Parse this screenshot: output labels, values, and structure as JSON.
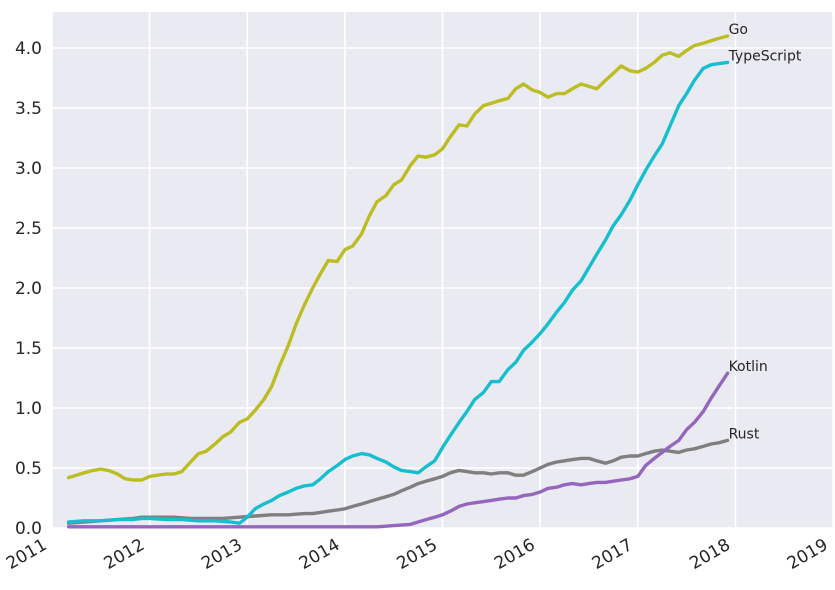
{
  "chart_data": {
    "type": "line",
    "title": "",
    "xlabel": "",
    "ylabel": "",
    "xlim": [
      2011.0,
      2019.0
    ],
    "ylim": [
      0.0,
      4.3
    ],
    "grid": true,
    "legend": "labels at line ends",
    "x_ticks": [
      "2011",
      "2012",
      "2013",
      "2014",
      "2015",
      "2016",
      "2017",
      "2018",
      "2019"
    ],
    "y_ticks": [
      "0.0",
      "0.5",
      "1.0",
      "1.5",
      "2.0",
      "2.5",
      "3.0",
      "3.5",
      "4.0"
    ],
    "series": [
      {
        "name": "Go",
        "color": "#bcbd22",
        "points": [
          [
            2011.17,
            0.42
          ],
          [
            2011.33,
            0.46
          ],
          [
            2011.42,
            0.48
          ],
          [
            2011.5,
            0.49
          ],
          [
            2011.58,
            0.48
          ],
          [
            2011.67,
            0.45
          ],
          [
            2011.75,
            0.41
          ],
          [
            2011.83,
            0.4
          ],
          [
            2011.92,
            0.4
          ],
          [
            2012.0,
            0.43
          ],
          [
            2012.08,
            0.44
          ],
          [
            2012.17,
            0.45
          ],
          [
            2012.25,
            0.45
          ],
          [
            2012.33,
            0.47
          ],
          [
            2012.42,
            0.55
          ],
          [
            2012.5,
            0.62
          ],
          [
            2012.58,
            0.64
          ],
          [
            2012.67,
            0.7
          ],
          [
            2012.75,
            0.76
          ],
          [
            2012.83,
            0.8
          ],
          [
            2012.92,
            0.88
          ],
          [
            2013.0,
            0.91
          ],
          [
            2013.08,
            0.98
          ],
          [
            2013.17,
            1.07
          ],
          [
            2013.25,
            1.18
          ],
          [
            2013.33,
            1.35
          ],
          [
            2013.42,
            1.52
          ],
          [
            2013.5,
            1.7
          ],
          [
            2013.58,
            1.85
          ],
          [
            2013.67,
            2.0
          ],
          [
            2013.75,
            2.12
          ],
          [
            2013.83,
            2.23
          ],
          [
            2013.92,
            2.22
          ],
          [
            2014.0,
            2.32
          ],
          [
            2014.08,
            2.35
          ],
          [
            2014.17,
            2.45
          ],
          [
            2014.25,
            2.6
          ],
          [
            2014.33,
            2.72
          ],
          [
            2014.42,
            2.77
          ],
          [
            2014.5,
            2.86
          ],
          [
            2014.58,
            2.9
          ],
          [
            2014.67,
            3.02
          ],
          [
            2014.75,
            3.1
          ],
          [
            2014.83,
            3.09
          ],
          [
            2014.92,
            3.11
          ],
          [
            2015.0,
            3.16
          ],
          [
            2015.08,
            3.26
          ],
          [
            2015.17,
            3.36
          ],
          [
            2015.25,
            3.35
          ],
          [
            2015.33,
            3.45
          ],
          [
            2015.42,
            3.52
          ],
          [
            2015.5,
            3.54
          ],
          [
            2015.58,
            3.56
          ],
          [
            2015.67,
            3.58
          ],
          [
            2015.75,
            3.66
          ],
          [
            2015.83,
            3.7
          ],
          [
            2015.92,
            3.65
          ],
          [
            2016.0,
            3.63
          ],
          [
            2016.08,
            3.59
          ],
          [
            2016.17,
            3.62
          ],
          [
            2016.25,
            3.62
          ],
          [
            2016.33,
            3.66
          ],
          [
            2016.42,
            3.7
          ],
          [
            2016.5,
            3.68
          ],
          [
            2016.58,
            3.66
          ],
          [
            2016.67,
            3.73
          ],
          [
            2016.75,
            3.79
          ],
          [
            2016.83,
            3.85
          ],
          [
            2016.92,
            3.81
          ],
          [
            2017.0,
            3.8
          ],
          [
            2017.08,
            3.83
          ],
          [
            2017.17,
            3.88
          ],
          [
            2017.25,
            3.94
          ],
          [
            2017.33,
            3.96
          ],
          [
            2017.42,
            3.93
          ],
          [
            2017.5,
            3.98
          ],
          [
            2017.58,
            4.02
          ],
          [
            2017.67,
            4.04
          ],
          [
            2017.75,
            4.06
          ],
          [
            2017.83,
            4.08
          ],
          [
            2017.92,
            4.1
          ]
        ]
      },
      {
        "name": "TypeScript",
        "color": "#17becf",
        "points": [
          [
            2011.17,
            0.05
          ],
          [
            2011.33,
            0.06
          ],
          [
            2011.5,
            0.06
          ],
          [
            2011.67,
            0.07
          ],
          [
            2011.83,
            0.07
          ],
          [
            2011.92,
            0.08
          ],
          [
            2012.0,
            0.08
          ],
          [
            2012.17,
            0.07
          ],
          [
            2012.33,
            0.07
          ],
          [
            2012.5,
            0.06
          ],
          [
            2012.67,
            0.06
          ],
          [
            2012.83,
            0.05
          ],
          [
            2012.92,
            0.04
          ],
          [
            2013.0,
            0.09
          ],
          [
            2013.08,
            0.16
          ],
          [
            2013.17,
            0.2
          ],
          [
            2013.25,
            0.23
          ],
          [
            2013.33,
            0.27
          ],
          [
            2013.42,
            0.3
          ],
          [
            2013.5,
            0.33
          ],
          [
            2013.58,
            0.35
          ],
          [
            2013.67,
            0.36
          ],
          [
            2013.75,
            0.41
          ],
          [
            2013.83,
            0.47
          ],
          [
            2013.92,
            0.52
          ],
          [
            2014.0,
            0.57
          ],
          [
            2014.08,
            0.6
          ],
          [
            2014.17,
            0.62
          ],
          [
            2014.25,
            0.61
          ],
          [
            2014.33,
            0.58
          ],
          [
            2014.42,
            0.55
          ],
          [
            2014.5,
            0.51
          ],
          [
            2014.58,
            0.48
          ],
          [
            2014.67,
            0.47
          ],
          [
            2014.75,
            0.46
          ],
          [
            2014.83,
            0.51
          ],
          [
            2014.92,
            0.56
          ],
          [
            2015.0,
            0.67
          ],
          [
            2015.08,
            0.77
          ],
          [
            2015.17,
            0.88
          ],
          [
            2015.25,
            0.97
          ],
          [
            2015.33,
            1.07
          ],
          [
            2015.42,
            1.13
          ],
          [
            2015.5,
            1.22
          ],
          [
            2015.58,
            1.22
          ],
          [
            2015.67,
            1.32
          ],
          [
            2015.75,
            1.38
          ],
          [
            2015.83,
            1.48
          ],
          [
            2015.92,
            1.55
          ],
          [
            2016.0,
            1.62
          ],
          [
            2016.08,
            1.7
          ],
          [
            2016.17,
            1.8
          ],
          [
            2016.25,
            1.88
          ],
          [
            2016.33,
            1.98
          ],
          [
            2016.42,
            2.06
          ],
          [
            2016.5,
            2.17
          ],
          [
            2016.58,
            2.28
          ],
          [
            2016.67,
            2.4
          ],
          [
            2016.75,
            2.52
          ],
          [
            2016.83,
            2.61
          ],
          [
            2016.92,
            2.73
          ],
          [
            2017.0,
            2.86
          ],
          [
            2017.08,
            2.98
          ],
          [
            2017.17,
            3.1
          ],
          [
            2017.25,
            3.2
          ],
          [
            2017.33,
            3.35
          ],
          [
            2017.42,
            3.52
          ],
          [
            2017.5,
            3.62
          ],
          [
            2017.58,
            3.73
          ],
          [
            2017.67,
            3.83
          ],
          [
            2017.75,
            3.86
          ],
          [
            2017.83,
            3.87
          ],
          [
            2017.92,
            3.88
          ]
        ]
      },
      {
        "name": "Kotlin",
        "color": "#9467bd",
        "points": [
          [
            2011.17,
            0.01
          ],
          [
            2011.5,
            0.01
          ],
          [
            2012.0,
            0.01
          ],
          [
            2012.5,
            0.01
          ],
          [
            2013.0,
            0.01
          ],
          [
            2013.5,
            0.01
          ],
          [
            2014.0,
            0.01
          ],
          [
            2014.33,
            0.01
          ],
          [
            2014.5,
            0.02
          ],
          [
            2014.67,
            0.03
          ],
          [
            2014.75,
            0.05
          ],
          [
            2014.83,
            0.07
          ],
          [
            2014.92,
            0.09
          ],
          [
            2015.0,
            0.11
          ],
          [
            2015.08,
            0.14
          ],
          [
            2015.17,
            0.18
          ],
          [
            2015.25,
            0.2
          ],
          [
            2015.33,
            0.21
          ],
          [
            2015.42,
            0.22
          ],
          [
            2015.5,
            0.23
          ],
          [
            2015.58,
            0.24
          ],
          [
            2015.67,
            0.25
          ],
          [
            2015.75,
            0.25
          ],
          [
            2015.83,
            0.27
          ],
          [
            2015.92,
            0.28
          ],
          [
            2016.0,
            0.3
          ],
          [
            2016.08,
            0.33
          ],
          [
            2016.17,
            0.34
          ],
          [
            2016.25,
            0.36
          ],
          [
            2016.33,
            0.37
          ],
          [
            2016.42,
            0.36
          ],
          [
            2016.5,
            0.37
          ],
          [
            2016.58,
            0.38
          ],
          [
            2016.67,
            0.38
          ],
          [
            2016.75,
            0.39
          ],
          [
            2016.83,
            0.4
          ],
          [
            2016.92,
            0.41
          ],
          [
            2017.0,
            0.43
          ],
          [
            2017.08,
            0.52
          ],
          [
            2017.17,
            0.58
          ],
          [
            2017.25,
            0.63
          ],
          [
            2017.33,
            0.68
          ],
          [
            2017.42,
            0.73
          ],
          [
            2017.5,
            0.82
          ],
          [
            2017.58,
            0.88
          ],
          [
            2017.67,
            0.97
          ],
          [
            2017.75,
            1.08
          ],
          [
            2017.83,
            1.18
          ],
          [
            2017.92,
            1.29
          ]
        ]
      },
      {
        "name": "Rust",
        "color": "#7f7f7f",
        "points": [
          [
            2011.17,
            0.04
          ],
          [
            2011.33,
            0.05
          ],
          [
            2011.5,
            0.06
          ],
          [
            2011.67,
            0.07
          ],
          [
            2011.83,
            0.08
          ],
          [
            2011.92,
            0.09
          ],
          [
            2012.08,
            0.09
          ],
          [
            2012.25,
            0.09
          ],
          [
            2012.42,
            0.08
          ],
          [
            2012.58,
            0.08
          ],
          [
            2012.75,
            0.08
          ],
          [
            2012.92,
            0.09
          ],
          [
            2013.08,
            0.1
          ],
          [
            2013.25,
            0.11
          ],
          [
            2013.42,
            0.11
          ],
          [
            2013.58,
            0.12
          ],
          [
            2013.67,
            0.12
          ],
          [
            2013.75,
            0.13
          ],
          [
            2013.83,
            0.14
          ],
          [
            2013.92,
            0.15
          ],
          [
            2014.0,
            0.16
          ],
          [
            2014.08,
            0.18
          ],
          [
            2014.17,
            0.2
          ],
          [
            2014.25,
            0.22
          ],
          [
            2014.33,
            0.24
          ],
          [
            2014.42,
            0.26
          ],
          [
            2014.5,
            0.28
          ],
          [
            2014.58,
            0.31
          ],
          [
            2014.67,
            0.34
          ],
          [
            2014.75,
            0.37
          ],
          [
            2014.83,
            0.39
          ],
          [
            2014.92,
            0.41
          ],
          [
            2015.0,
            0.43
          ],
          [
            2015.08,
            0.46
          ],
          [
            2015.17,
            0.48
          ],
          [
            2015.25,
            0.47
          ],
          [
            2015.33,
            0.46
          ],
          [
            2015.42,
            0.46
          ],
          [
            2015.5,
            0.45
          ],
          [
            2015.58,
            0.46
          ],
          [
            2015.67,
            0.46
          ],
          [
            2015.75,
            0.44
          ],
          [
            2015.83,
            0.44
          ],
          [
            2015.92,
            0.47
          ],
          [
            2016.0,
            0.5
          ],
          [
            2016.08,
            0.53
          ],
          [
            2016.17,
            0.55
          ],
          [
            2016.25,
            0.56
          ],
          [
            2016.33,
            0.57
          ],
          [
            2016.42,
            0.58
          ],
          [
            2016.5,
            0.58
          ],
          [
            2016.58,
            0.56
          ],
          [
            2016.67,
            0.54
          ],
          [
            2016.75,
            0.56
          ],
          [
            2016.83,
            0.59
          ],
          [
            2016.92,
            0.6
          ],
          [
            2017.0,
            0.6
          ],
          [
            2017.08,
            0.62
          ],
          [
            2017.17,
            0.64
          ],
          [
            2017.25,
            0.65
          ],
          [
            2017.33,
            0.64
          ],
          [
            2017.42,
            0.63
          ],
          [
            2017.5,
            0.65
          ],
          [
            2017.58,
            0.66
          ],
          [
            2017.67,
            0.68
          ],
          [
            2017.75,
            0.7
          ],
          [
            2017.83,
            0.71
          ],
          [
            2017.92,
            0.73
          ]
        ]
      }
    ]
  }
}
